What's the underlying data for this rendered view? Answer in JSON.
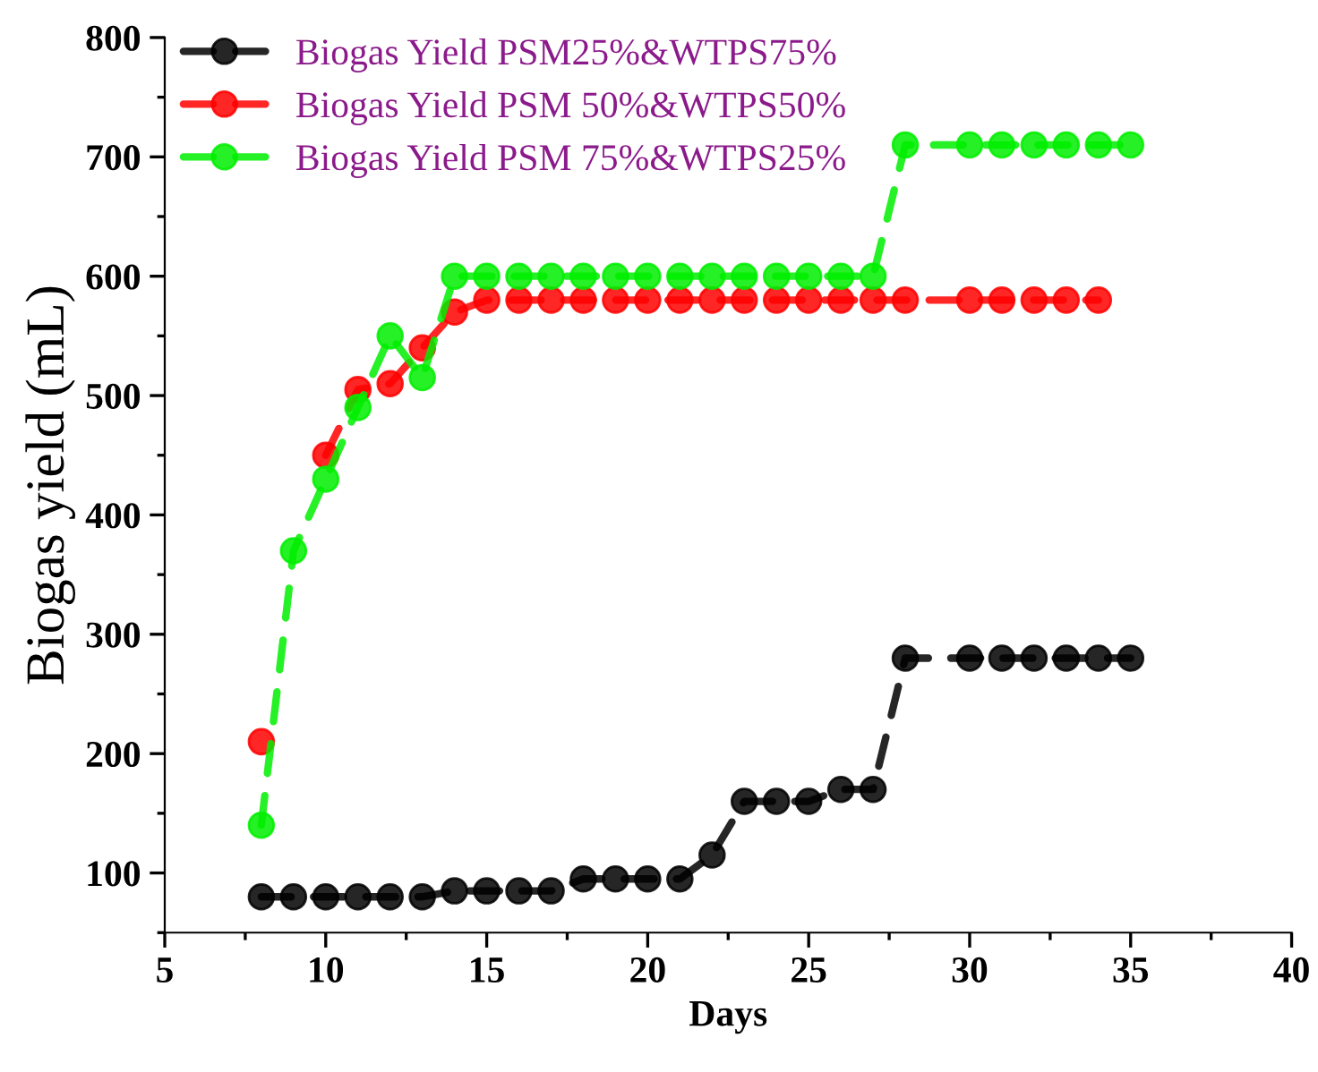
{
  "chart_data": {
    "type": "line",
    "xlabel": "Days",
    "ylabel": "Biogas yield (mL)",
    "xlim": [
      5,
      40
    ],
    "xticks": [
      5,
      10,
      15,
      20,
      25,
      30,
      35,
      40
    ],
    "ylim": [
      50,
      800
    ],
    "yticks": [
      100,
      200,
      300,
      400,
      500,
      600,
      700,
      800
    ],
    "grid": false,
    "legend": "top left",
    "marker": "circle",
    "line_style": "dashed",
    "series": [
      {
        "name": "Biogas Yield PSM25%&WTPS75%",
        "color": "#000000",
        "x": [
          8,
          9,
          10,
          11,
          12,
          13,
          14,
          15,
          16,
          17,
          18,
          19,
          20,
          21,
          22,
          23,
          24,
          25,
          26,
          27,
          28,
          30,
          31,
          32,
          33,
          34,
          35
        ],
        "values": [
          80,
          80,
          80,
          80,
          80,
          80,
          85,
          85,
          85,
          85,
          95,
          95,
          95,
          95,
          115,
          160,
          160,
          160,
          170,
          170,
          280,
          280,
          280,
          280,
          280,
          280,
          280
        ]
      },
      {
        "name": "Biogas Yield PSM 50%&WTPS50%",
        "color": "#ff0000",
        "x": [
          8,
          9,
          10,
          11,
          12,
          13,
          14,
          15,
          16,
          17,
          18,
          19,
          20,
          21,
          22,
          23,
          24,
          25,
          26,
          27,
          28,
          30,
          31,
          32,
          33,
          34
        ],
        "values": [
          210,
          null,
          450,
          505,
          510,
          540,
          570,
          580,
          580,
          580,
          580,
          580,
          580,
          580,
          580,
          580,
          580,
          580,
          580,
          580,
          580,
          580,
          580,
          580,
          580,
          580
        ]
      },
      {
        "name": "Biogas Yield PSM 75%&WTPS25%",
        "color": "#00ee00",
        "x": [
          8,
          9,
          10,
          11,
          12,
          13,
          14,
          15,
          16,
          17,
          18,
          19,
          20,
          21,
          22,
          23,
          24,
          25,
          26,
          27,
          28,
          30,
          31,
          32,
          33,
          34,
          35
        ],
        "values": [
          140,
          370,
          430,
          490,
          550,
          515,
          600,
          600,
          600,
          600,
          600,
          600,
          600,
          600,
          600,
          600,
          600,
          600,
          600,
          600,
          710,
          710,
          710,
          710,
          710,
          710,
          710
        ]
      }
    ]
  }
}
